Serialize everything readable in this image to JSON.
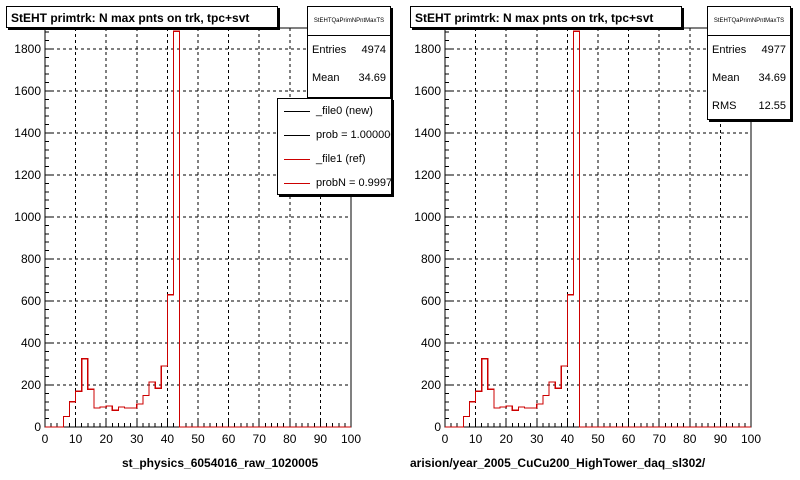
{
  "chart_data": [
    {
      "type": "bar",
      "title": "StEHT primtrk: N max pnts on trk, tpc+svt",
      "stats": {
        "name": "StEHTQaPrimNPntMaxTS",
        "entries_label": "Entries",
        "entries": "4974",
        "mean_label": "Mean",
        "mean": "34.69"
      },
      "legend": [
        {
          "label": "_file0 (new)",
          "color": "#000000"
        },
        {
          "label": "prob = 1.000000",
          "color": "#000000"
        },
        {
          "label": "_file1 (ref)",
          "color": "#cc0000"
        },
        {
          "label": "probN = 0.99971",
          "color": "#cc0000"
        }
      ],
      "xlim": [
        0,
        100
      ],
      "ylim": [
        0,
        1900
      ],
      "xticks": [
        "0",
        "10",
        "20",
        "30",
        "40",
        "50",
        "60",
        "70",
        "80",
        "90",
        "100"
      ],
      "yticks": [
        "0",
        "200",
        "400",
        "600",
        "800",
        "1000",
        "1200",
        "1400",
        "1600",
        "1800"
      ],
      "bin_width": 2,
      "bin_edges_start": 0,
      "series": [
        {
          "color": "#cc0000",
          "values": [
            0,
            0,
            0,
            50,
            120,
            170,
            325,
            180,
            90,
            95,
            100,
            80,
            95,
            90,
            90,
            110,
            150,
            215,
            185,
            290,
            630,
            1885,
            0,
            0,
            0,
            0,
            0,
            0,
            0,
            0,
            0,
            0,
            0,
            0,
            0,
            0,
            0,
            0,
            0,
            0,
            0,
            0,
            0,
            0,
            0,
            0,
            0,
            0,
            0,
            0
          ]
        }
      ],
      "footer": "st_physics_6054016_raw_1020005"
    },
    {
      "type": "bar",
      "title": "StEHT primtrk: N max pnts on trk, tpc+svt",
      "stats": {
        "name": "StEHTQaPrimNPntMaxTS",
        "entries_label": "Entries",
        "entries": "4977",
        "mean_label": "Mean",
        "mean": "34.69",
        "rms_label": "RMS",
        "rms": "12.55"
      },
      "xlim": [
        0,
        100
      ],
      "ylim": [
        0,
        1900
      ],
      "xticks": [
        "0",
        "10",
        "20",
        "30",
        "40",
        "50",
        "60",
        "70",
        "80",
        "90",
        "100"
      ],
      "yticks": [
        "0",
        "200",
        "400",
        "600",
        "800",
        "1000",
        "1200",
        "1400",
        "1600",
        "1800"
      ],
      "bin_width": 2,
      "bin_edges_start": 0,
      "series": [
        {
          "color": "#cc0000",
          "values": [
            0,
            0,
            0,
            50,
            120,
            170,
            325,
            180,
            90,
            95,
            100,
            80,
            95,
            90,
            90,
            110,
            150,
            215,
            185,
            290,
            630,
            1885,
            0,
            0,
            0,
            0,
            0,
            0,
            0,
            0,
            0,
            0,
            0,
            0,
            0,
            0,
            0,
            0,
            0,
            0,
            0,
            0,
            0,
            0,
            0,
            0,
            0,
            0,
            0,
            0
          ]
        }
      ],
      "footer": "arision/year_2005_CuCu200_HighTower_daq_sl302/"
    }
  ]
}
